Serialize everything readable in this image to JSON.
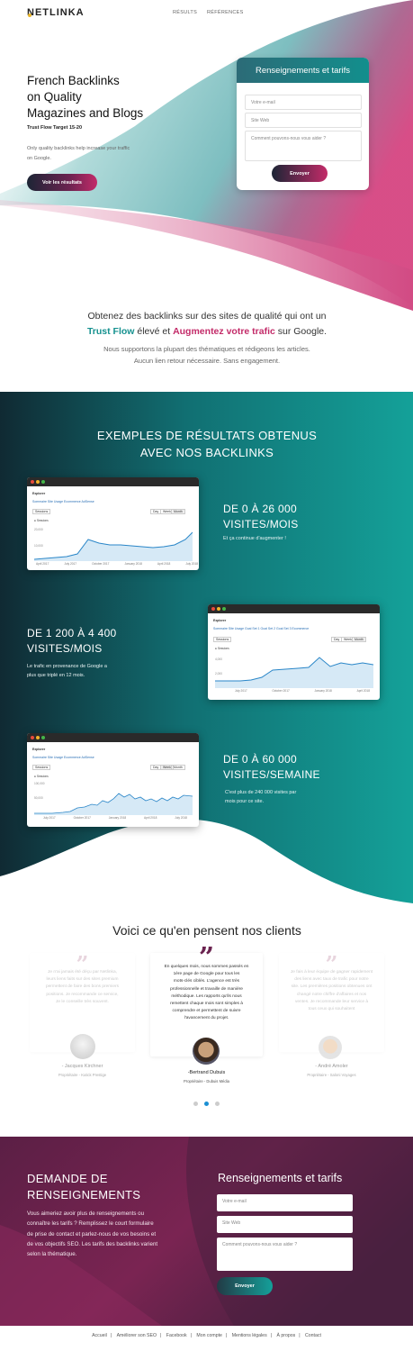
{
  "header": {
    "logo": "NETLINKA",
    "nav": [
      "RÉSULTS",
      "RÉFÉRENCES"
    ]
  },
  "hero": {
    "title_lines": [
      "French Backlinks",
      "on Quality",
      "Magazines and Blogs"
    ],
    "subtitle": "Trust Flow Target 15-20",
    "desc_lines": [
      "Only quality backlinks help increase your traffic",
      "on Google."
    ],
    "button": "Voir les résultats"
  },
  "hero_form": {
    "title": "Renseignements et tarifs",
    "email_placeholder": "Votre e-mail",
    "site_placeholder": "Site Web",
    "message_placeholder": "Comment pouvons-nous vous aider ?",
    "submit": "Envoyer"
  },
  "intro": {
    "line1": "Obtenez des backlinks sur des sites de qualité qui ont un",
    "tf": "Trust Flow",
    "mid": " élevé et ",
    "traffic": "Augmentez votre trafic",
    "end": " sur Google.",
    "sub1": "Nous supportons la plupart des thématiques et rédigeons les articles.",
    "sub2": "Aucun lien retour nécessaire. Sans engagement."
  },
  "results": {
    "title_lines": [
      "EXEMPLES DE RÉSULTATS OBTENUS",
      "AVEC NOS BACKLINKS"
    ],
    "items": [
      {
        "title_lines": [
          "DE 0 À 26 000",
          "VISITES/MOIS"
        ],
        "desc_lines": [
          "Et ça continue d'augmenter !"
        ],
        "shot": {
          "header": "Explorer",
          "tabs": "Sommaire   Site Usage   Ecommerce   AdSense",
          "select": "Sessions",
          "legend": "Sessions",
          "ytick": [
            "20,000",
            "10,000"
          ],
          "xtick": [
            "April 2017",
            "July 2017",
            "October 2017",
            "January 2018",
            "April 2018",
            "July 2018"
          ],
          "buttons": [
            "Day",
            "Week",
            "Month"
          ]
        }
      },
      {
        "title_lines": [
          "DE 1 200 À 4 400",
          "VISITES/MOIS"
        ],
        "desc_lines": [
          "Le trafic en provenance de Google a",
          "plus que triplé en 12 mois."
        ],
        "shot": {
          "header": "Explorer",
          "tabs": "Sommaire   Site Usage   Goal Set 1   Goal Set 2   Goal Set 3   Ecommerce",
          "select": "Sessions",
          "legend": "Sessions",
          "ytick": [
            "4,000",
            "2,000"
          ],
          "xtick": [
            "July 2017",
            "October 2017",
            "January 2018",
            "April 2018"
          ],
          "buttons": [
            "Day",
            "Week",
            "Month"
          ]
        }
      },
      {
        "title_lines": [
          "DE 0 À 60 000",
          "VISITES/SEMAINE"
        ],
        "desc_lines": [
          "C'est plus de 240 000 visites par",
          "mois pour ce site."
        ],
        "shot": {
          "header": "Explorer",
          "tabs": "Sommaire   Site Usage   Ecommerce   AdSense",
          "select": "Sessions",
          "legend": "Sessions",
          "ytick": [
            "100,000",
            "50,000"
          ],
          "xtick": [
            "July 2017",
            "October 2017",
            "January 2018",
            "April 2018",
            "July 2018"
          ],
          "buttons": [
            "Day",
            "Week",
            "Month"
          ]
        }
      }
    ]
  },
  "testimonials": {
    "title": "Voici ce qu'en pensent nos clients",
    "items": [
      {
        "text_lines": [
          "Je n'ai jamais été déçu par Netlinka,",
          "leurs liens faits sur des sites premium",
          "permettent de faire des bons premiers",
          "positions. Je recommande ce service,",
          "Je le conseille très souvent."
        ],
        "name": "- Jacques Kirchner",
        "role": "Propriétaire - Kutick Prestige"
      },
      {
        "text_lines": [
          "En quelques mois, nous sommes passés en",
          "1ère page de Google pour tous les",
          "mots-clés ciblés. L'agence est très",
          "professionnelle et travaille de manière",
          "méthodique. Les rapports qu'ils nous",
          "remettent chaque mois sont simples à",
          "comprendre et permettent de suivre",
          "l'avancement du projet."
        ],
        "name": "-Bertrand Dubuis",
        "role": "Propriétaire - Dubuis Média"
      },
      {
        "text_lines": [
          "Je fais à leur équipe de gagner rapidement",
          "des liens avec taux de trafic pour notre",
          "site. Les premières positions obtenues ont",
          "changé notre chiffre d'affaires et nos",
          "ventes. Je recommande leur service à",
          "tous ceux qui souhaitent"
        ],
        "name": "- André Amoler",
        "role": "Propriétaire - Saloni Voyages"
      }
    ]
  },
  "contact": {
    "title_lines": [
      "DEMANDE DE",
      "RENSEIGNEMENTS"
    ],
    "desc_lines": [
      "Vous aimeriez avoir plus de renseignements ou",
      "connaître les tarifs ? Remplissez le court formulaire",
      "de prise de contact et parlez-nous de vos besoins et",
      "de vos objectifs SEO. Les tarifs des backlinks varient",
      "selon la thématique."
    ],
    "form_title": "Renseignements et tarifs",
    "email_placeholder": "Votre e-mail",
    "site_placeholder": "Site Web",
    "message_placeholder": "Comment pouvons-nous vous aider ?",
    "submit": "Envoyer"
  },
  "footer": {
    "links": [
      "Accueil",
      "Améliorer son SEO",
      "Facebook",
      "Mon compte",
      "Mentions légales",
      "À propos",
      "Contact"
    ]
  },
  "colors": {
    "teal": "#15918f",
    "pink": "#c32b69",
    "dark": "#1c2535",
    "plum": "#6b2350"
  }
}
